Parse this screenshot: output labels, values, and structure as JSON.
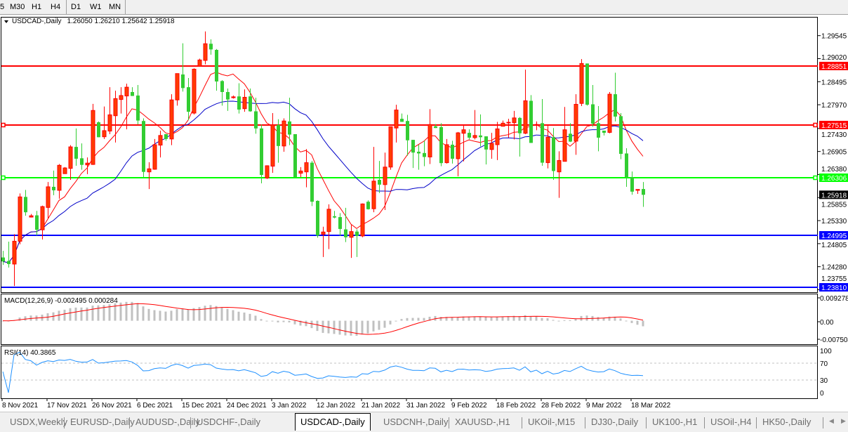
{
  "toolbar": {
    "timeframes": [
      "5",
      "M30",
      "H1",
      "H4",
      "D1",
      "W1",
      "MN"
    ]
  },
  "chart": {
    "symbol_label": "USDCAD-,Daily",
    "ohlc_label": "1.26050 1.26210 1.25642 1.25918",
    "price_axis": [
      "1.29545",
      "1.29020",
      "1.28495",
      "1.27970",
      "1.27430",
      "1.26905",
      "1.26380",
      "1.25855",
      "1.25330",
      "1.24805",
      "1.24280",
      "1.23755"
    ],
    "levels": [
      {
        "price": "1.28851",
        "color": "#ff0000"
      },
      {
        "price": "1.27515",
        "color": "#ff0000"
      },
      {
        "price": "1.26306",
        "color": "#00ff00"
      },
      {
        "price": "1.24995",
        "color": "#0000ff"
      },
      {
        "price": "1.23810",
        "color": "#0000ff"
      }
    ],
    "current_price": "1.25918",
    "bull_color": "#ff3c00",
    "bear_color": "#32cd32",
    "ma_colors": [
      "#ff0000",
      "#0000c8"
    ],
    "dates": [
      "8 Nov 2021",
      "17 Nov 2021",
      "26 Nov 2021",
      "6 Dec 2021",
      "15 Dec 2021",
      "24 Dec 2021",
      "3 Jan 2022",
      "12 Jan 2022",
      "21 Jan 2022",
      "31 Jan 2022",
      "9 Feb 2022",
      "18 Feb 2022",
      "28 Feb 2022",
      "9 Mar 2022",
      "18 Mar 2022"
    ],
    "candles_ohlc": [
      [
        1.2449,
        1.2464,
        1.2432,
        1.244
      ],
      [
        1.2441,
        1.2485,
        1.2426,
        1.2434
      ],
      [
        1.2434,
        1.2502,
        1.2384,
        1.2486
      ],
      [
        1.2486,
        1.2595,
        1.2479,
        1.2587
      ],
      [
        1.2587,
        1.2603,
        1.2544,
        1.2552
      ],
      [
        1.2541,
        1.2548,
        1.254,
        1.2544
      ],
      [
        1.2545,
        1.2555,
        1.2499,
        1.2512
      ],
      [
        1.2512,
        1.2567,
        1.249,
        1.2565
      ],
      [
        1.2563,
        1.2621,
        1.2538,
        1.261
      ],
      [
        1.261,
        1.2647,
        1.2591,
        1.2602
      ],
      [
        1.2602,
        1.2662,
        1.2583,
        1.2659
      ],
      [
        1.264,
        1.2655,
        1.264,
        1.2653
      ],
      [
        1.2652,
        1.2705,
        1.2626,
        1.2701
      ],
      [
        1.2701,
        1.2743,
        1.2658,
        1.2674
      ],
      [
        1.2675,
        1.2709,
        1.2649,
        1.266
      ],
      [
        1.266,
        1.2677,
        1.2639,
        1.2664
      ],
      [
        1.2661,
        1.2799,
        1.266,
        1.2784
      ],
      [
        1.2757,
        1.2759,
        1.2723,
        1.2723
      ],
      [
        1.2724,
        1.2793,
        1.2719,
        1.2738
      ],
      [
        1.2737,
        1.2837,
        1.273,
        1.2774
      ],
      [
        1.2772,
        1.2829,
        1.2711,
        1.2811
      ],
      [
        1.2809,
        1.2837,
        1.2777,
        1.2818
      ],
      [
        1.2817,
        1.2845,
        1.2741,
        1.2837
      ],
      [
        1.2826,
        1.2837,
        1.2817,
        1.2817
      ],
      [
        1.2818,
        1.2842,
        1.2752,
        1.2761
      ],
      [
        1.276,
        1.2766,
        1.2632,
        1.2644
      ],
      [
        1.2644,
        1.2666,
        1.2605,
        1.2651
      ],
      [
        1.265,
        1.2719,
        1.2649,
        1.2706
      ],
      [
        1.2705,
        1.2738,
        1.2677,
        1.2727
      ],
      [
        1.273,
        1.273,
        1.2715,
        1.2719
      ],
      [
        1.2719,
        1.2821,
        1.2705,
        1.2808
      ],
      [
        1.2808,
        1.2868,
        1.2795,
        1.2868
      ],
      [
        1.2866,
        1.2937,
        1.2827,
        1.2835
      ],
      [
        1.2837,
        1.2858,
        1.2762,
        1.2781
      ],
      [
        1.2778,
        1.288,
        1.2775,
        1.2878
      ],
      [
        1.2885,
        1.2902,
        1.2885,
        1.2899
      ],
      [
        1.2898,
        1.2964,
        1.2889,
        1.2936
      ],
      [
        1.2936,
        1.2946,
        1.2911,
        1.2923
      ],
      [
        1.2922,
        1.2924,
        1.2829,
        1.285
      ],
      [
        1.2851,
        1.2853,
        1.2795,
        1.2826
      ],
      [
        1.2826,
        1.2834,
        1.2783,
        1.2809
      ],
      [
        1.2813,
        1.2818,
        1.2811,
        1.2815
      ],
      [
        1.2816,
        1.2846,
        1.2777,
        1.2786
      ],
      [
        1.2788,
        1.2832,
        1.2781,
        1.2814
      ],
      [
        1.2816,
        1.2834,
        1.2781,
        1.2782
      ],
      [
        1.2782,
        1.2813,
        1.2731,
        1.2743
      ],
      [
        1.2743,
        1.2752,
        1.2618,
        1.2637
      ],
      [
        1.263,
        1.2659,
        1.2628,
        1.2658
      ],
      [
        1.2657,
        1.2778,
        1.2642,
        1.2751
      ],
      [
        1.2751,
        1.2764,
        1.2665,
        1.2703
      ],
      [
        1.2703,
        1.2766,
        1.269,
        1.276
      ],
      [
        1.2759,
        1.2813,
        1.2705,
        1.2729
      ],
      [
        1.273,
        1.273,
        1.2632,
        1.2632
      ],
      [
        1.2641,
        1.2655,
        1.2632,
        1.2646
      ],
      [
        1.2644,
        1.2696,
        1.2609,
        1.2665
      ],
      [
        1.2665,
        1.2669,
        1.2566,
        1.2576
      ],
      [
        1.2578,
        1.2579,
        1.2494,
        1.2499
      ],
      [
        1.2502,
        1.2519,
        1.245,
        1.2507
      ],
      [
        1.2508,
        1.257,
        1.2468,
        1.2559
      ],
      [
        1.2543,
        1.2555,
        1.2538,
        1.254
      ],
      [
        1.2541,
        1.255,
        1.2498,
        1.2514
      ],
      [
        1.2513,
        1.2562,
        1.2484,
        1.2495
      ],
      [
        1.2495,
        1.2523,
        1.2448,
        1.2508
      ],
      [
        1.2508,
        1.2513,
        1.245,
        1.2498
      ],
      [
        1.2498,
        1.2572,
        1.2495,
        1.2571
      ],
      [
        1.2576,
        1.2579,
        1.2558,
        1.2559
      ],
      [
        1.256,
        1.2701,
        1.2552,
        1.2623
      ],
      [
        1.2626,
        1.2669,
        1.2596,
        1.2615
      ],
      [
        1.2615,
        1.2688,
        1.2557,
        1.2655
      ],
      [
        1.2655,
        1.2747,
        1.2649,
        1.2747
      ],
      [
        1.2744,
        1.2797,
        1.2711,
        1.2785
      ],
      [
        1.2765,
        1.2777,
        1.2758,
        1.2758
      ],
      [
        1.276,
        1.2774,
        1.2681,
        1.2716
      ],
      [
        1.2717,
        1.2717,
        1.2653,
        1.2688
      ],
      [
        1.269,
        1.2706,
        1.2649,
        1.2686
      ],
      [
        1.2687,
        1.2715,
        1.2657,
        1.2678
      ],
      [
        1.2678,
        1.2787,
        1.2662,
        1.2752
      ],
      [
        1.2748,
        1.2753,
        1.2744,
        1.2744
      ],
      [
        1.2746,
        1.2755,
        1.2657,
        1.2664
      ],
      [
        1.2665,
        1.2719,
        1.2663,
        1.2706
      ],
      [
        1.2706,
        1.2715,
        1.2663,
        1.2674
      ],
      [
        1.2674,
        1.2735,
        1.2634,
        1.2733
      ],
      [
        1.2732,
        1.2752,
        1.2668,
        1.274
      ],
      [
        1.2733,
        1.2741,
        1.2718,
        1.2722
      ],
      [
        1.2722,
        1.2785,
        1.2718,
        1.2727
      ],
      [
        1.2727,
        1.2775,
        1.2702,
        1.2723
      ],
      [
        1.2725,
        1.2725,
        1.2661,
        1.2695
      ],
      [
        1.2695,
        1.2733,
        1.2674,
        1.2709
      ],
      [
        1.2706,
        1.2758,
        1.2671,
        1.2742
      ],
      [
        1.2748,
        1.2761,
        1.2748,
        1.2755
      ],
      [
        1.2756,
        1.2765,
        1.2722,
        1.2757
      ],
      [
        1.2756,
        1.2783,
        1.2718,
        1.2767
      ],
      [
        1.2767,
        1.2769,
        1.2679,
        1.2732
      ],
      [
        1.2732,
        1.2877,
        1.273,
        1.2806
      ],
      [
        1.2806,
        1.2819,
        1.271,
        1.271
      ],
      [
        1.2751,
        1.2759,
        1.2739,
        1.2752
      ],
      [
        1.2755,
        1.281,
        1.2658,
        1.2665
      ],
      [
        1.2665,
        1.2749,
        1.2652,
        1.2723
      ],
      [
        1.2723,
        1.2744,
        1.2626,
        1.2646
      ],
      [
        1.2644,
        1.2691,
        1.2585,
        1.267
      ],
      [
        1.2668,
        1.2792,
        1.2668,
        1.274
      ],
      [
        1.2731,
        1.2755,
        1.2712,
        1.2713
      ],
      [
        1.2714,
        1.2821,
        1.2683,
        1.2798
      ],
      [
        1.28,
        1.2901,
        1.2794,
        1.2891
      ],
      [
        1.2891,
        1.2891,
        1.2795,
        1.2797
      ],
      [
        1.2798,
        1.2842,
        1.2747,
        1.2754
      ],
      [
        1.2755,
        1.2794,
        1.2691,
        1.2722
      ],
      [
        1.2738,
        1.2738,
        1.2727,
        1.2733
      ],
      [
        1.2734,
        1.2826,
        1.2732,
        1.2821
      ],
      [
        1.2821,
        1.287,
        1.2759,
        1.277
      ],
      [
        1.2771,
        1.2778,
        1.2673,
        1.2685
      ],
      [
        1.2686,
        1.2698,
        1.261,
        1.2632
      ],
      [
        1.2631,
        1.2645,
        1.2592,
        1.2599
      ],
      [
        1.2602,
        1.2604,
        1.2594,
        1.2604
      ],
      [
        1.2605,
        1.2621,
        1.25642,
        1.25918
      ]
    ]
  },
  "macd": {
    "label": "MACD(12,26,9) -0.002495 0.000284",
    "axis": [
      "0.009278",
      "0.00",
      "-0.007504"
    ],
    "histogram_color": "#c0c0c0",
    "signal_color": "#ff0000"
  },
  "rsi": {
    "label": "RSI(14) 40.3865",
    "axis": [
      "100",
      "70",
      "30",
      "0"
    ],
    "line_color": "#1e90ff"
  },
  "tabs": [
    {
      "label": "USDX,Weekly"
    },
    {
      "label": "EURUSD-,Daily"
    },
    {
      "label": "AUDUSD-,Daily"
    },
    {
      "label": "USDCHF-,Daily"
    },
    {
      "label": "USDCAD-,Daily",
      "active": true
    },
    {
      "label": "USDCNH-,Daily"
    },
    {
      "label": "XAUUSD-,H1"
    },
    {
      "label": "UKOil-,M15"
    },
    {
      "label": "DJ30-,Daily"
    },
    {
      "label": "UK100-,H1"
    },
    {
      "label": "USOil-,H4"
    },
    {
      "label": "HK50-,Daily"
    }
  ]
}
